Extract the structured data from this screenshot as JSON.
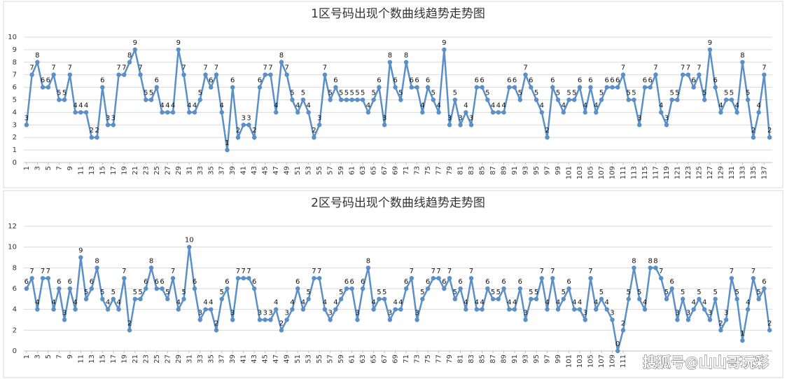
{
  "chart_data": [
    {
      "type": "line",
      "title": "1区号码出现个数曲线趋势走势图",
      "x": [
        1,
        2,
        3,
        4,
        5,
        6,
        7,
        8,
        9,
        10,
        11,
        12,
        13,
        14,
        15,
        16,
        17,
        18,
        19,
        20,
        21,
        22,
        23,
        24,
        25,
        26,
        27,
        28,
        29,
        30,
        31,
        32,
        33,
        34,
        35,
        36,
        37,
        38,
        39,
        40,
        41,
        42,
        43,
        44,
        45,
        46,
        47,
        48,
        49,
        50,
        51,
        52,
        53,
        54,
        55,
        56,
        57,
        58,
        59,
        60,
        61,
        62,
        63,
        64,
        65,
        66,
        67,
        68,
        69,
        70,
        71,
        72,
        73,
        74,
        75,
        76,
        77,
        78,
        79,
        80,
        81,
        82,
        83,
        84,
        85,
        86,
        87,
        88,
        89,
        90,
        91,
        92,
        93,
        94,
        95,
        96,
        97,
        98,
        99,
        100,
        101,
        102,
        103,
        104,
        105,
        106,
        107,
        108,
        109,
        110,
        111,
        112,
        113,
        114,
        115,
        116,
        117,
        118,
        119,
        120,
        121,
        122,
        123,
        124,
        125,
        126,
        127,
        128,
        129,
        130,
        131,
        132,
        133,
        134,
        135,
        136,
        137,
        138
      ],
      "series": [
        {
          "color": "#5b8fc7",
          "values": [
            3,
            7,
            8,
            6,
            6,
            7,
            5,
            5,
            7,
            4,
            4,
            4,
            2,
            2,
            6,
            3,
            3,
            7,
            7,
            8,
            9,
            7,
            5,
            5,
            6,
            4,
            4,
            4,
            9,
            7,
            4,
            4,
            5,
            7,
            6,
            7,
            4,
            1,
            6,
            2,
            3,
            3,
            2,
            6,
            7,
            7,
            4,
            8,
            7,
            5,
            4,
            5,
            4,
            2,
            3,
            7,
            5,
            6,
            5,
            5,
            5,
            5,
            5,
            4,
            5,
            6,
            3,
            8,
            6,
            5,
            8,
            6,
            6,
            4,
            6,
            5,
            4,
            9,
            3,
            5,
            3,
            4,
            3,
            6,
            6,
            5,
            4,
            4,
            4,
            6,
            6,
            5,
            7,
            6,
            5,
            4,
            2,
            6,
            5,
            4,
            5,
            5,
            6,
            4,
            6,
            4,
            5,
            6,
            6,
            6,
            7,
            5,
            5,
            3,
            6,
            6,
            7,
            4,
            3,
            5,
            5,
            7,
            7,
            6,
            7,
            5,
            9,
            6,
            4,
            5,
            5,
            4,
            8,
            5,
            2,
            4,
            7,
            2
          ]
        }
      ],
      "xlim": [
        0.5,
        138.5
      ],
      "xticks": [
        1,
        3,
        5,
        7,
        9,
        11,
        13,
        15,
        17,
        19,
        21,
        23,
        25,
        27,
        29,
        31,
        33,
        35,
        37,
        39,
        41,
        43,
        45,
        47,
        49,
        51,
        53,
        55,
        57,
        59,
        61,
        63,
        65,
        67,
        69,
        71,
        73,
        75,
        77,
        79,
        81,
        83,
        85,
        87,
        89,
        91,
        93,
        95,
        97,
        99,
        101,
        103,
        105,
        107,
        109,
        111,
        113,
        115,
        117,
        119,
        121,
        123,
        125,
        127,
        129,
        131,
        133,
        135,
        137
      ],
      "ylim": [
        0,
        10
      ],
      "yticks": [
        0,
        1,
        2,
        3,
        4,
        5,
        6,
        7,
        8,
        9,
        10
      ],
      "grid": true
    },
    {
      "type": "line",
      "title": "2区号码出现个数曲线趋势走势图",
      "x": [
        1,
        2,
        3,
        4,
        5,
        6,
        7,
        8,
        9,
        10,
        11,
        12,
        13,
        14,
        15,
        16,
        17,
        18,
        19,
        20,
        21,
        22,
        23,
        24,
        25,
        26,
        27,
        28,
        29,
        30,
        31,
        32,
        33,
        34,
        35,
        36,
        37,
        38,
        39,
        40,
        41,
        42,
        43,
        44,
        45,
        46,
        47,
        48,
        49,
        50,
        51,
        52,
        53,
        54,
        55,
        56,
        57,
        58,
        59,
        60,
        61,
        62,
        63,
        64,
        65,
        66,
        67,
        68,
        69,
        70,
        71,
        72,
        73,
        74,
        75,
        76,
        77,
        78,
        79,
        80,
        81,
        82,
        83,
        84,
        85,
        86,
        87,
        88,
        89,
        90,
        91,
        92,
        93,
        94,
        95,
        96,
        97,
        98,
        99,
        100,
        101,
        102,
        103,
        104,
        105,
        106,
        107,
        108,
        109,
        110,
        111,
        112,
        113,
        114,
        115,
        116,
        117,
        118,
        119,
        120,
        121,
        122,
        123,
        124,
        125,
        126,
        127,
        128,
        129,
        130,
        131,
        132,
        133,
        134,
        135,
        136,
        137,
        138
      ],
      "series": [
        {
          "color": "#5b8fc7",
          "values": [
            6,
            7,
            4,
            7,
            7,
            4,
            6,
            3,
            6,
            4,
            9,
            5,
            6,
            8,
            5,
            4,
            5,
            4,
            7,
            2,
            5,
            5,
            6,
            8,
            6,
            6,
            5,
            7,
            4,
            5,
            10,
            6,
            3,
            4,
            4,
            2,
            5,
            6,
            3,
            7,
            7,
            7,
            6,
            3,
            3,
            3,
            4,
            2,
            3,
            4,
            6,
            4,
            5,
            7,
            7,
            4,
            3,
            4,
            5,
            6,
            6,
            3,
            6,
            8,
            4,
            5,
            5,
            3,
            4,
            4,
            6,
            7,
            3,
            5,
            6,
            7,
            7,
            6,
            7,
            5,
            6,
            4,
            7,
            4,
            4,
            6,
            5,
            5,
            6,
            4,
            4,
            6,
            3,
            5,
            5,
            7,
            4,
            7,
            4,
            5,
            6,
            4,
            4,
            3,
            7,
            4,
            5,
            4,
            3,
            0,
            2,
            5,
            8,
            5,
            4,
            8,
            8,
            7,
            5,
            6,
            3,
            5,
            3,
            4,
            5,
            4,
            3,
            5,
            2,
            3,
            7,
            5,
            1,
            4,
            7,
            5,
            6,
            2
          ]
        }
      ],
      "xlim": [
        0.5,
        138.5
      ],
      "xticks": [
        1,
        3,
        5,
        7,
        9,
        11,
        13,
        15,
        17,
        19,
        21,
        23,
        25,
        27,
        29,
        31,
        33,
        35,
        37,
        39,
        41,
        43,
        45,
        47,
        49,
        51,
        53,
        55,
        57,
        59,
        61,
        63,
        65,
        67,
        69,
        71,
        73,
        75,
        77,
        79,
        81,
        83,
        85,
        87,
        89,
        91,
        93,
        95,
        97,
        99,
        101,
        103,
        105,
        107,
        109,
        111
      ],
      "ylim": [
        0,
        12
      ],
      "yticks": [
        0,
        2,
        4,
        6,
        8,
        10,
        12
      ],
      "grid": true
    }
  ],
  "watermark": "搜狐号@山山哥玩彩"
}
